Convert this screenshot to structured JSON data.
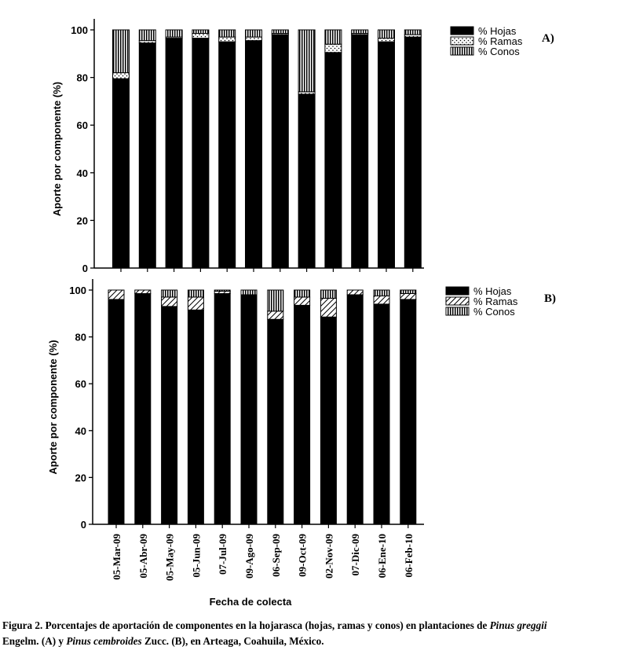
{
  "chart_data": [
    {
      "type": "bar",
      "stacked": true,
      "panel": "A)",
      "ylabel": "Aporte por componente (%)",
      "ylim": [
        0,
        100
      ],
      "yticks": [
        0,
        20,
        40,
        60,
        80,
        100
      ],
      "legend": [
        "% Hojas",
        "% Ramas",
        "% Conos"
      ],
      "categories": [
        "05-Mar-09",
        "05-Abr-09",
        "05-May-09",
        "05-Jun-09",
        "07-Jul-09",
        "09-Ago-09",
        "06-Sep-09",
        "09-Oct-09",
        "02-Nov-09",
        "07-Dic-09",
        "06-Ene-10",
        "06-Feb-10"
      ],
      "series": [
        {
          "name": "% Hojas",
          "values": [
            79.5,
            94.5,
            96.5,
            96.5,
            95,
            95.5,
            98,
            73,
            90.5,
            98,
            95,
            97
          ]
        },
        {
          "name": "% Ramas",
          "values": [
            2.5,
            1,
            0.5,
            2,
            2,
            1.5,
            0.5,
            1,
            3.5,
            0.5,
            1.5,
            1
          ]
        },
        {
          "name": "% Conos",
          "values": [
            18,
            4.5,
            3,
            1.5,
            3,
            3,
            1.5,
            26,
            6,
            1.5,
            3.5,
            2
          ]
        }
      ]
    },
    {
      "type": "bar",
      "stacked": true,
      "panel": "B)",
      "ylabel": "Aporte por componente (%)",
      "xlabel": "Fecha de colecta",
      "ylim": [
        0,
        100
      ],
      "yticks": [
        0,
        20,
        40,
        60,
        80,
        100
      ],
      "legend": [
        "% Hojas",
        "% Ramas",
        "% Conos"
      ],
      "categories": [
        "05-Mar-09",
        "05-Abr-09",
        "05-May-09",
        "05-Jun-09",
        "07-Jul-09",
        "09-Ago-09",
        "06-Sep-09",
        "09-Oct-09",
        "02-Nov-09",
        "07-Dic-09",
        "06-Ene-10",
        "06-Feb-10"
      ],
      "series": [
        {
          "name": "% Hojas",
          "values": [
            96,
            98.5,
            93,
            91.5,
            98.5,
            98,
            87.5,
            93.5,
            88.5,
            98,
            94,
            96
          ]
        },
        {
          "name": "% Ramas",
          "values": [
            4,
            1.5,
            4,
            5.5,
            1,
            0,
            3.5,
            3.5,
            8,
            2,
            3.5,
            2.5
          ]
        },
        {
          "name": "% Conos",
          "values": [
            0,
            0,
            3,
            3,
            0.5,
            2,
            9,
            3,
            3.5,
            0,
            2.5,
            1.5
          ]
        }
      ]
    }
  ],
  "caption": {
    "part1": "Figura 2. Porcentajes de aportación de componentes en la hojarasca (hojas, ramas y conos) en plantaciones de ",
    "species1": "Pinus greggii",
    "part2": "Engelm. (A) y ",
    "species2": "Pinus cembroides",
    "part3": " Zucc. (B), en Arteaga, Coahuila, México."
  }
}
